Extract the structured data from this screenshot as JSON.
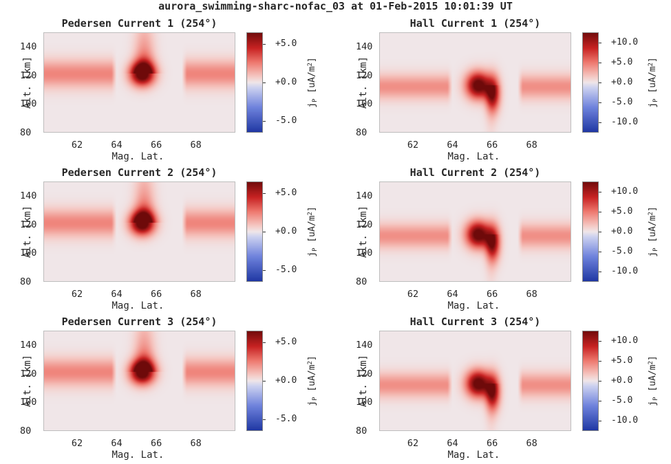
{
  "figure": {
    "suptitle": "aurora_swimming-sharc-nofac_03 at 01-Feb-2015 10:01:39 UT"
  },
  "colormap": {
    "low": "#1e36a2",
    "mid": "#f0e6e8",
    "high": "#6e0a0a",
    "background": "#f0e6e8"
  },
  "panels": [
    {
      "title": "Pedersen Current 1 (254°)",
      "kind": "pedersen"
    },
    {
      "title": "Hall Current 1 (254°)",
      "kind": "hall"
    },
    {
      "title": "Pedersen Current 2 (254°)",
      "kind": "pedersen"
    },
    {
      "title": "Hall Current 2 (254°)",
      "kind": "hall"
    },
    {
      "title": "Pedersen Current 3 (254°)",
      "kind": "pedersen"
    },
    {
      "title": "Hall Current 3 (254°)",
      "kind": "hall"
    }
  ],
  "chart_data": [
    {
      "type": "heatmap",
      "title": "Pedersen Current 1 (254°)",
      "xlabel": "Mag. Lat.",
      "ylabel": "Alt. [km]",
      "xlim": [
        60.3,
        70.0
      ],
      "ylim": [
        80,
        150
      ],
      "xticks": [
        "62",
        "64",
        "66",
        "68"
      ],
      "yticks": [
        "80",
        "100",
        "120",
        "140"
      ],
      "colorbar": {
        "label": "j_P [uA/m^2]",
        "range": [
          -6.5,
          6.5
        ],
        "ticks": [
          "+5.0",
          "+0.0",
          "-5.0"
        ]
      },
      "features": {
        "band_center_alt": 121,
        "band_value": 2.3,
        "gap_mlat": [
          64.0,
          67.3
        ],
        "peak_mlat": 65.3,
        "peak_alt": 121,
        "peak_value": 8.0,
        "tail_upward": true
      }
    },
    {
      "type": "heatmap",
      "title": "Hall Current 1 (254°)",
      "xlabel": "Mag. Lat.",
      "ylabel": "Alt. [km]",
      "xlim": [
        60.3,
        70.0
      ],
      "ylim": [
        80,
        150
      ],
      "xticks": [
        "62",
        "64",
        "66",
        "68"
      ],
      "yticks": [
        "80",
        "100",
        "120",
        "140"
      ],
      "colorbar": {
        "label": "j_P [uA/m^2]",
        "range": [
          -12.5,
          12.5
        ],
        "ticks": [
          "+10.0",
          "+5.0",
          "+0.0",
          "-5.0",
          "-10.0"
        ]
      },
      "features": {
        "band_center_alt": 112,
        "band_value": 4.0,
        "gap_mlat": [
          64.0,
          67.3
        ],
        "peak_mlat": 65.3,
        "peak_alt": 113,
        "peak_value": 14.0,
        "tail_downward": true
      }
    },
    {
      "type": "heatmap",
      "title": "Pedersen Current 2 (254°)",
      "xlabel": "Mag. Lat.",
      "ylabel": "Alt. [km]",
      "xlim": [
        60.3,
        70.0
      ],
      "ylim": [
        80,
        150
      ],
      "xticks": [
        "62",
        "64",
        "66",
        "68"
      ],
      "yticks": [
        "80",
        "100",
        "120",
        "140"
      ],
      "colorbar": {
        "label": "j_P [uA/m^2]",
        "range": [
          -6.5,
          6.5
        ],
        "ticks": [
          "+5.0",
          "+0.0",
          "-5.0"
        ]
      },
      "features": {
        "band_center_alt": 121,
        "band_value": 2.3,
        "gap_mlat": [
          64.0,
          67.3
        ],
        "peak_mlat": 65.3,
        "peak_alt": 121,
        "peak_value": 8.0,
        "tail_upward": true
      }
    },
    {
      "type": "heatmap",
      "title": "Hall Current 2 (254°)",
      "xlabel": "Mag. Lat.",
      "ylabel": "Alt. [km]",
      "xlim": [
        60.3,
        70.0
      ],
      "ylim": [
        80,
        150
      ],
      "xticks": [
        "62",
        "64",
        "66",
        "68"
      ],
      "yticks": [
        "80",
        "100",
        "120",
        "140"
      ],
      "colorbar": {
        "label": "j_P [uA/m^2]",
        "range": [
          -12.5,
          12.5
        ],
        "ticks": [
          "+10.0",
          "+5.0",
          "+0.0",
          "-5.0",
          "-10.0"
        ]
      },
      "features": {
        "band_center_alt": 112,
        "band_value": 4.0,
        "gap_mlat": [
          64.0,
          67.3
        ],
        "peak_mlat": 65.3,
        "peak_alt": 113,
        "peak_value": 14.0,
        "tail_downward": true
      }
    },
    {
      "type": "heatmap",
      "title": "Pedersen Current 3 (254°)",
      "xlabel": "Mag. Lat.",
      "ylabel": "Alt. [km]",
      "xlim": [
        60.3,
        70.0
      ],
      "ylim": [
        80,
        150
      ],
      "xticks": [
        "62",
        "64",
        "66",
        "68"
      ],
      "yticks": [
        "80",
        "100",
        "120",
        "140"
      ],
      "colorbar": {
        "label": "j_P [uA/m^2]",
        "range": [
          -6.5,
          6.5
        ],
        "ticks": [
          "+5.0",
          "+0.0",
          "-5.0"
        ]
      },
      "features": {
        "band_center_alt": 121,
        "band_value": 2.3,
        "gap_mlat": [
          64.0,
          67.3
        ],
        "peak_mlat": 65.3,
        "peak_alt": 121,
        "peak_value": 8.0,
        "tail_upward": true
      }
    },
    {
      "type": "heatmap",
      "title": "Hall Current 3 (254°)",
      "xlabel": "Mag. Lat.",
      "ylabel": "Alt. [km]",
      "xlim": [
        60.3,
        70.0
      ],
      "ylim": [
        80,
        150
      ],
      "xticks": [
        "62",
        "64",
        "66",
        "68"
      ],
      "yticks": [
        "80",
        "100",
        "120",
        "140"
      ],
      "colorbar": {
        "label": "j_P [uA/m^2]",
        "range": [
          -12.5,
          12.5
        ],
        "ticks": [
          "+10.0",
          "+5.0",
          "+0.0",
          "-5.0",
          "-10.0"
        ]
      },
      "features": {
        "band_center_alt": 112,
        "band_value": 4.0,
        "gap_mlat": [
          64.0,
          67.3
        ],
        "peak_mlat": 65.3,
        "peak_alt": 113,
        "peak_value": 14.0,
        "tail_downward": true
      }
    }
  ]
}
